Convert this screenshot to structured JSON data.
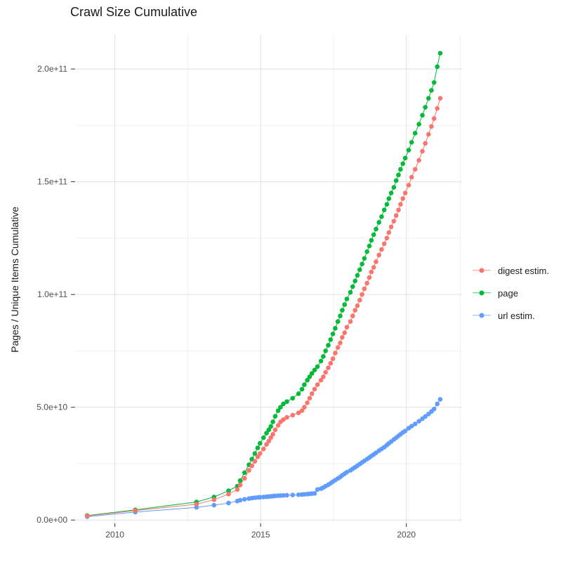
{
  "chart_data": {
    "type": "line",
    "title": "Crawl Size Cumulative",
    "xlabel": "",
    "ylabel": "Pages / Unique Items Cumulative",
    "unit_note": "series values in billions (1e9) of pages / unique items",
    "grid": "on",
    "legend_position": "right",
    "points": true,
    "xlim": [
      2008.66,
      2021.91
    ],
    "ylim_billions": [
      -1.5,
      215
    ],
    "x_ticks": {
      "values": [
        2010,
        2015,
        2020
      ],
      "labels": [
        "2010",
        "2015",
        "2020"
      ]
    },
    "x_minor_ticks": [
      2012.5,
      2017.5,
      2021.85
    ],
    "y_ticks": {
      "values_billions": [
        0,
        50,
        100,
        150,
        200
      ],
      "labels": [
        "0.0e+00",
        "5.0e+10",
        "1.0e+11",
        "1.5e+11",
        "2.0e+11"
      ]
    },
    "y_minor_ticks_billions": [
      25,
      75,
      125,
      175
    ],
    "x_years": [
      2009.05,
      2010.7,
      2012.8,
      2013.4,
      2013.9,
      2014.2,
      2014.3,
      2014.45,
      2014.6,
      2014.7,
      2014.8,
      2014.9,
      2014.98,
      2015.1,
      2015.2,
      2015.28,
      2015.35,
      2015.42,
      2015.5,
      2015.6,
      2015.68,
      2015.78,
      2015.9,
      2016.1,
      2016.3,
      2016.42,
      2016.5,
      2016.6,
      2016.68,
      2016.76,
      2016.85,
      2016.95,
      2017.07,
      2017.15,
      2017.23,
      2017.32,
      2017.4,
      2017.48,
      2017.56,
      2017.65,
      2017.73,
      2017.8,
      2017.88,
      2017.96,
      2018.08,
      2018.16,
      2018.24,
      2018.32,
      2018.4,
      2018.48,
      2018.56,
      2018.65,
      2018.73,
      2018.8,
      2018.88,
      2018.96,
      2019.06,
      2019.15,
      2019.24,
      2019.33,
      2019.4,
      2019.48,
      2019.57,
      2019.65,
      2019.73,
      2019.8,
      2019.88,
      2019.96,
      2020.08,
      2020.18,
      2020.3,
      2020.43,
      2020.55,
      2020.65,
      2020.76,
      2020.86,
      2020.95,
      2021.06,
      2021.16
    ],
    "series": [
      {
        "name": "digest estim.",
        "color": "#F8766D",
        "z": 3,
        "values_billions": [
          1.8,
          4.2,
          7,
          9,
          11.5,
          13.5,
          15.5,
          18.5,
          22,
          24,
          26,
          28,
          29.5,
          31.5,
          33.5,
          35,
          36.5,
          38,
          40,
          42,
          43.5,
          44.5,
          45.5,
          46.5,
          47.5,
          48.5,
          50,
          52,
          54,
          56,
          58,
          60,
          62,
          63.5,
          65.5,
          67.5,
          69.5,
          71.5,
          74,
          76.5,
          78.5,
          81,
          83,
          85.5,
          88,
          90.5,
          93,
          95,
          97.5,
          100,
          102.5,
          105,
          107.5,
          110,
          112,
          114.5,
          117.5,
          120,
          122.5,
          125,
          127.5,
          130,
          132.5,
          135,
          137.5,
          140,
          142.5,
          145,
          148.5,
          152,
          155.5,
          159.5,
          163.5,
          167,
          171,
          174.5,
          178,
          182.5,
          187
        ]
      },
      {
        "name": "page",
        "color": "#00BA38",
        "z": 2,
        "values_billions": [
          2,
          4.5,
          8,
          10.2,
          13,
          15,
          17.5,
          21,
          24.5,
          27,
          29.5,
          32,
          34,
          36.5,
          38.5,
          40,
          41.5,
          43.5,
          46,
          48.5,
          50,
          51.5,
          52.5,
          54,
          56,
          58,
          60,
          62,
          63.5,
          65,
          66.5,
          68,
          70.5,
          72.5,
          75,
          77.5,
          80,
          82.5,
          85,
          88,
          90.5,
          93,
          95.5,
          98,
          101,
          103.5,
          106,
          108.5,
          111,
          113.5,
          116,
          119,
          121.5,
          124,
          126.5,
          129,
          132,
          134.5,
          137.5,
          140,
          142.5,
          145,
          147.5,
          150.5,
          153,
          155.5,
          158,
          160.5,
          164,
          167.5,
          171.5,
          175.5,
          179.5,
          183,
          187,
          190.5,
          194,
          201,
          207
        ]
      },
      {
        "name": "url estim.",
        "color": "#619CFF",
        "z": 1,
        "values_billions": [
          1.5,
          3.5,
          5.6,
          6.6,
          7.5,
          8.4,
          8.8,
          9.2,
          9.5,
          9.7,
          9.9,
          10,
          10.1,
          10.2,
          10.3,
          10.4,
          10.5,
          10.6,
          10.7,
          10.8,
          10.85,
          10.9,
          11,
          11.1,
          11.2,
          11.3,
          11.4,
          11.5,
          11.6,
          11.7,
          11.8,
          13.5,
          13.9,
          14.4,
          15,
          15.6,
          16.3,
          17,
          17.7,
          18.4,
          19.1,
          19.8,
          20.5,
          21.2,
          22,
          22.7,
          23.4,
          24.1,
          24.8,
          25.5,
          26.2,
          27,
          27.7,
          28.4,
          29.1,
          29.8,
          30.7,
          31.5,
          32.3,
          33.2,
          34,
          34.8,
          35.7,
          36.5,
          37.3,
          38,
          38.8,
          39.5,
          40.7,
          41.6,
          42.6,
          43.8,
          44.9,
          45.9,
          47,
          48.1,
          49.2,
          51.5,
          53.5
        ]
      }
    ]
  },
  "style_colors": {
    "major_grid": "#E2E2E2",
    "minor_grid": "#EDEDED",
    "tick_mark": "#333333",
    "axis_text": "#4D4D4D"
  }
}
